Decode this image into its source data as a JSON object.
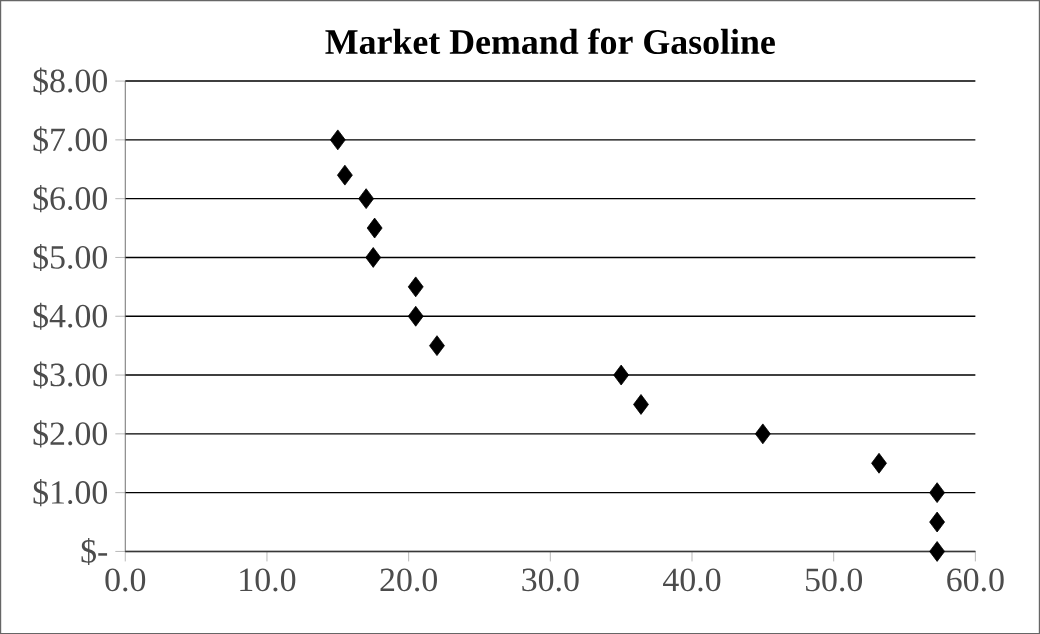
{
  "chart_data": {
    "type": "scatter",
    "title": "Market Demand for Gasoline",
    "x": [
      15,
      15.5,
      17,
      17.6,
      17.5,
      20.5,
      20.5,
      22,
      35,
      36.4,
      45,
      53.2,
      57.3,
      57.3,
      57.3
    ],
    "values": [
      7,
      6.4,
      6,
      5.5,
      5,
      4.5,
      4,
      3.5,
      3,
      2.5,
      2,
      1.5,
      1,
      0.5,
      0
    ],
    "color": "#000000",
    "marker": "diamond",
    "grid": "y",
    "xlim": [
      0,
      60
    ],
    "xticks": [
      {
        "value": 0,
        "label": "0.0"
      },
      {
        "value": 10,
        "label": "10.0"
      },
      {
        "value": 20,
        "label": "20.0"
      },
      {
        "value": 30,
        "label": "30.0"
      },
      {
        "value": 40,
        "label": "40.0"
      },
      {
        "value": 50,
        "label": "50.0"
      },
      {
        "value": 60,
        "label": "60.0"
      }
    ],
    "ylim": [
      0,
      8
    ],
    "yticks": [
      {
        "value": 0,
        "label": "$-"
      },
      {
        "value": 1,
        "label": "$1.00"
      },
      {
        "value": 2,
        "label": "$2.00"
      },
      {
        "value": 3,
        "label": "$3.00"
      },
      {
        "value": 4,
        "label": "$4.00"
      },
      {
        "value": 5,
        "label": "$5.00"
      },
      {
        "value": 6,
        "label": "$6.00"
      },
      {
        "value": 7,
        "label": "$7.00"
      },
      {
        "value": 8,
        "label": "$8.00"
      }
    ]
  }
}
